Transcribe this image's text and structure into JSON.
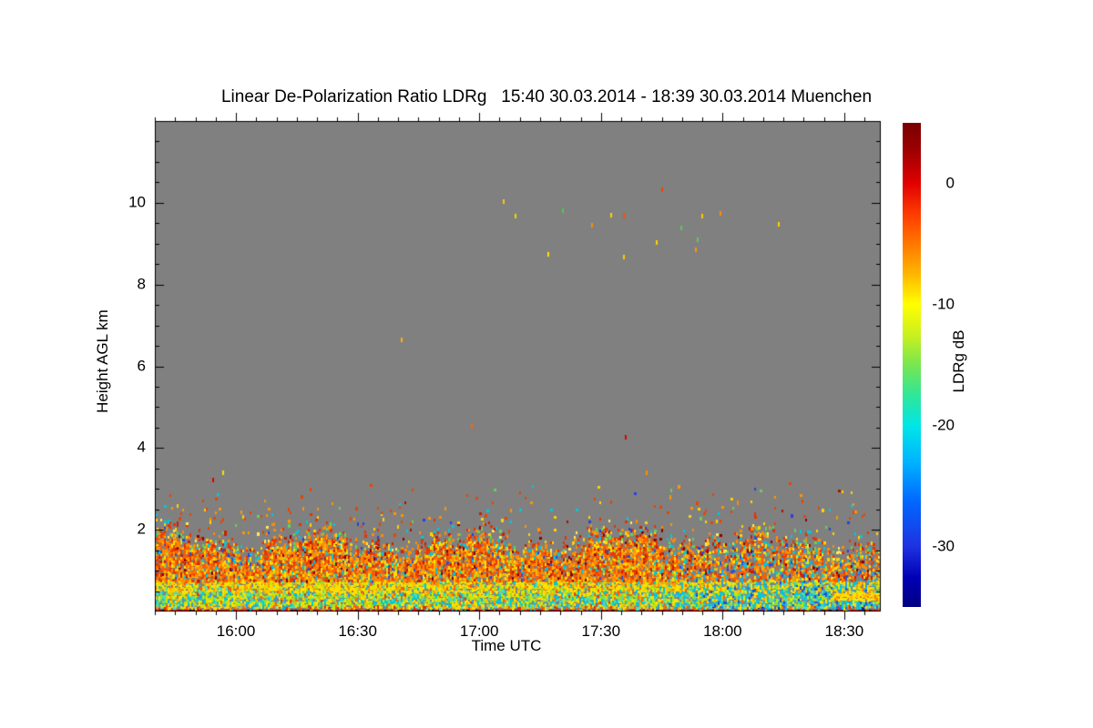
{
  "chart_data": {
    "type": "heatmap",
    "title": "Linear De-Polarization Ratio LDRg   15:40 30.03.2014 - 18:39 30.03.2014 Muenchen",
    "xlabel": "Time UTC",
    "ylabel": "Height AGL km",
    "colorbar_label": "LDRg dB",
    "station": "Muenchen",
    "date": "30.03.2014",
    "plot_bg": "#808080",
    "axis_color": "#000000",
    "x_axis": {
      "start": "15:40",
      "end": "18:39",
      "total_minutes": 179,
      "major_ticks": [
        {
          "label": "16:00",
          "minute": 20
        },
        {
          "label": "16:30",
          "minute": 50
        },
        {
          "label": "17:00",
          "minute": 80
        },
        {
          "label": "17:30",
          "minute": 110
        },
        {
          "label": "18:00",
          "minute": 140
        },
        {
          "label": "18:30",
          "minute": 170
        }
      ],
      "minor_tick_every_min": 5
    },
    "y_axis": {
      "min_km": 0,
      "max_km": 12,
      "major_ticks": [
        2,
        4,
        6,
        8,
        10
      ],
      "minor_tick_every_km": 0.5
    },
    "colorbar": {
      "value_top": 5,
      "value_bottom": -35,
      "ticks": [
        {
          "label": "0",
          "value": 0
        },
        {
          "label": "-10",
          "value": -10
        },
        {
          "label": "-20",
          "value": -20
        },
        {
          "label": "-30",
          "value": -30
        }
      ],
      "stops": [
        [
          "#780000",
          0
        ],
        [
          "#a00000",
          0.06
        ],
        [
          "#e10000",
          0.125
        ],
        [
          "#ff3c00",
          0.19
        ],
        [
          "#ff7800",
          0.25
        ],
        [
          "#ffb400",
          0.31
        ],
        [
          "#ffff00",
          0.375
        ],
        [
          "#c8f020",
          0.44
        ],
        [
          "#78e650",
          0.5
        ],
        [
          "#32e696",
          0.56
        ],
        [
          "#00e6e6",
          0.625
        ],
        [
          "#00b4ff",
          0.7
        ],
        [
          "#0069ff",
          0.78
        ],
        [
          "#1e32e1",
          0.875
        ],
        [
          "#0000b4",
          0.94
        ],
        [
          "#000082",
          1
        ]
      ]
    },
    "speckle_field": {
      "seed": 1337,
      "right_shift_min": 132,
      "flame": {
        "base": 1.42,
        "amp1": 0.2,
        "per1": 6,
        "ph1": 1.2,
        "amp2": 0.12,
        "per2": 2.1,
        "ph2": 0.4,
        "noise": 0.25,
        "late_drop_min": 150,
        "late_drop_km": 0.12,
        "span": 0.6
      },
      "layers": [
        {
          "name": "surface-stripe",
          "h": [
            0,
            0.09
          ],
          "density": 1,
          "palette": [
            [
              "#c80000",
              0.28
            ],
            [
              "#dc1400",
              0.22
            ],
            [
              "#960000",
              0.16
            ],
            [
              "#ff3200",
              0.12
            ],
            [
              "#000000",
              0.08
            ],
            [
              "#ff7800",
              0.05
            ],
            [
              "#00c8dc",
              0.05
            ],
            [
              "#ffdc00",
              0.04
            ]
          ],
          "right_palette": [
            [
              "#b40000",
              0.2
            ],
            [
              "#dc1400",
              0.16
            ],
            [
              "#960000",
              0.12
            ],
            [
              "#1e3cc8",
              0.14
            ],
            [
              "#00a0dc",
              0.1
            ],
            [
              "#ff3200",
              0.1
            ],
            [
              "#000000",
              0.08
            ],
            [
              "#ff7800",
              0.05
            ],
            [
              "#ffdc00",
              0.05
            ]
          ]
        },
        {
          "name": "transition-line",
          "h": [
            0.09,
            0.16
          ],
          "density": 0.97,
          "palette": [
            [
              "#ffdc00",
              0.3
            ],
            [
              "#ffa000",
              0.2
            ],
            [
              "#ff5a00",
              0.14
            ],
            [
              "#50dcc8",
              0.12
            ],
            [
              "#c8e600",
              0.1
            ],
            [
              "#e62800",
              0.08
            ],
            [
              "#00b4e6",
              0.06
            ]
          ],
          "right_palette": [
            [
              "#00c8e6",
              0.22
            ],
            [
              "#2864e6",
              0.12
            ],
            [
              "#ffdc00",
              0.2
            ],
            [
              "#ff7800",
              0.14
            ],
            [
              "#50dcc8",
              0.12
            ],
            [
              "#c8e600",
              0.08
            ],
            [
              "#e62800",
              0.06
            ],
            [
              "#0a28a0",
              0.06
            ]
          ]
        },
        {
          "name": "cyan-green-band",
          "h": [
            0.16,
            0.45
          ],
          "density": 0.97,
          "palette": [
            [
              "#c8e600",
              0.17
            ],
            [
              "#ffe100",
              0.19
            ],
            [
              "#50dcaa",
              0.16
            ],
            [
              "#00ccd7",
              0.16
            ],
            [
              "#96dc32",
              0.13
            ],
            [
              "#ffaa00",
              0.08
            ],
            [
              "#28a0e6",
              0.05
            ],
            [
              "#ff6400",
              0.04
            ],
            [
              "#e63c00",
              0.02
            ]
          ],
          "right_palette": [
            [
              "#00ccd7",
              0.24
            ],
            [
              "#28b4e6",
              0.15
            ],
            [
              "#50dcaa",
              0.14
            ],
            [
              "#c8e600",
              0.12
            ],
            [
              "#ffe100",
              0.12
            ],
            [
              "#96dc32",
              0.08
            ],
            [
              "#1e50d2",
              0.08
            ],
            [
              "#ffaa00",
              0.05
            ],
            [
              "#ff6400",
              0.02
            ]
          ]
        },
        {
          "name": "yellow-band",
          "h": [
            0.45,
            0.72
          ],
          "density": 0.96,
          "palette": [
            [
              "#ffe100",
              0.32
            ],
            [
              "#ffc800",
              0.16
            ],
            [
              "#d7e600",
              0.14
            ],
            [
              "#ff9600",
              0.12
            ],
            [
              "#a0dc28",
              0.09
            ],
            [
              "#ff5a00",
              0.07
            ],
            [
              "#50dcb4",
              0.05
            ],
            [
              "#00c8dc",
              0.05
            ]
          ],
          "right_palette": [
            [
              "#ffe100",
              0.2
            ],
            [
              "#00c8dc",
              0.17
            ],
            [
              "#50dcb4",
              0.12
            ],
            [
              "#d7e600",
              0.12
            ],
            [
              "#ffc800",
              0.1
            ],
            [
              "#28a0e6",
              0.1
            ],
            [
              "#ff9600",
              0.08
            ],
            [
              "#a0dc28",
              0.06
            ],
            [
              "#1e50d2",
              0.05
            ]
          ]
        },
        {
          "name": "orange-band",
          "h": [
            0.72,
            null
          ],
          "density": 0.93,
          "right_density": 0.72,
          "palette": [
            [
              "#ff8c00",
              0.23
            ],
            [
              "#ff5a00",
              0.2
            ],
            [
              "#e63c00",
              0.15
            ],
            [
              "#ffb400",
              0.13
            ],
            [
              "#ffe100",
              0.1
            ],
            [
              "#c81e00",
              0.07
            ],
            [
              "#a0dc28",
              0.04
            ],
            [
              "#00c8dc",
              0.04
            ],
            [
              "#2850dc",
              0.02
            ],
            [
              "#8c0000",
              0.02
            ]
          ],
          "right_palette": [
            [
              "#ff8c00",
              0.17
            ],
            [
              "#ff5a00",
              0.15
            ],
            [
              "#e63c00",
              0.1
            ],
            [
              "#ffb400",
              0.1
            ],
            [
              "#ffe100",
              0.09
            ],
            [
              "#00c8dc",
              0.13
            ],
            [
              "#28a0e6",
              0.08
            ],
            [
              "#c81e00",
              0.06
            ],
            [
              "#a0dc28",
              0.05
            ],
            [
              "#2850dc",
              0.05
            ],
            [
              "#8c0000",
              0.02
            ]
          ]
        },
        {
          "name": "flame-top",
          "h": [
            null,
            null
          ],
          "density": 0.5,
          "palette": [
            [
              "#e63200",
              0.25
            ],
            [
              "#ff8c00",
              0.22
            ],
            [
              "#ffd200",
              0.15
            ],
            [
              "#c81e00",
              0.08
            ],
            [
              "#64d25a",
              0.09
            ],
            [
              "#00c8dc",
              0.09
            ],
            [
              "#ffe95a",
              0.05
            ],
            [
              "#2841dc",
              0.04
            ],
            [
              "#8c0000",
              0.03
            ]
          ]
        },
        {
          "name": "sparse-scatter",
          "h": [
            null,
            2.55
          ],
          "density": 0.05,
          "palette": [
            [
              "#e64600",
              0.3
            ],
            [
              "#ff9600",
              0.22
            ],
            [
              "#ffd200",
              0.16
            ],
            [
              "#64d25a",
              0.1
            ],
            [
              "#00c8dc",
              0.1
            ],
            [
              "#a01400",
              0.07
            ],
            [
              "#2841dc",
              0.05
            ]
          ]
        },
        {
          "name": "very-sparse",
          "h": [
            2.55,
            3.15
          ],
          "density": 0.012,
          "palette": [
            [
              "#e64600",
              0.3
            ],
            [
              "#ff9600",
              0.22
            ],
            [
              "#ffd200",
              0.16
            ],
            [
              "#64d25a",
              0.1
            ],
            [
              "#00c8dc",
              0.1
            ],
            [
              "#a01400",
              0.07
            ],
            [
              "#2841dc",
              0.05
            ]
          ]
        }
      ],
      "far_right_streak": {
        "after_min": 167,
        "h0": 0.3,
        "h1": 0.46,
        "palette": [
          [
            "#ffe100",
            0.55
          ],
          [
            "#ffc800",
            0.2
          ],
          [
            "#ffb400",
            0.15
          ],
          [
            "#ff7800",
            0.1
          ]
        ]
      }
    },
    "isolated_points": [
      {
        "t": 85.8,
        "h": 10.04,
        "c": "#ffc800"
      },
      {
        "t": 88.7,
        "h": 9.69,
        "c": "#e6dc00"
      },
      {
        "t": 96.8,
        "h": 8.75,
        "c": "#ffe100"
      },
      {
        "t": 100.4,
        "h": 9.82,
        "c": "#50c850"
      },
      {
        "t": 107.6,
        "h": 9.47,
        "c": "#ff8c00"
      },
      {
        "t": 112.3,
        "h": 9.71,
        "c": "#ffd200"
      },
      {
        "t": 115.4,
        "h": 9.69,
        "c": "#ff4b00"
      },
      {
        "t": 115.4,
        "h": 8.69,
        "c": "#ffc800"
      },
      {
        "t": 123.5,
        "h": 9.04,
        "c": "#ffd200"
      },
      {
        "t": 124.9,
        "h": 10.33,
        "c": "#ff3c00"
      },
      {
        "t": 129.6,
        "h": 9.4,
        "c": "#5ac85a"
      },
      {
        "t": 133.2,
        "h": 8.86,
        "c": "#ff9600"
      },
      {
        "t": 133.6,
        "h": 9.11,
        "c": "#64c85f"
      },
      {
        "t": 134.8,
        "h": 9.69,
        "c": "#ffc800"
      },
      {
        "t": 139.2,
        "h": 9.76,
        "c": "#ff8c00"
      },
      {
        "t": 153.6,
        "h": 9.49,
        "c": "#ffd200"
      },
      {
        "t": 14.1,
        "h": 3.23,
        "c": "#e10000"
      },
      {
        "t": 16.6,
        "h": 3.41,
        "c": "#ffe100"
      },
      {
        "t": 60.6,
        "h": 6.66,
        "c": "#ffb400"
      },
      {
        "t": 77.9,
        "h": 4.54,
        "c": "#ff6400"
      },
      {
        "t": 115.9,
        "h": 4.27,
        "c": "#e10000"
      },
      {
        "t": 121.1,
        "h": 3.41,
        "c": "#ff8c00"
      },
      {
        "t": 126.9,
        "h": 2.81,
        "c": "#ff9600"
      },
      {
        "t": 143.5,
        "h": 2.67,
        "c": "#ff8c00"
      }
    ]
  }
}
